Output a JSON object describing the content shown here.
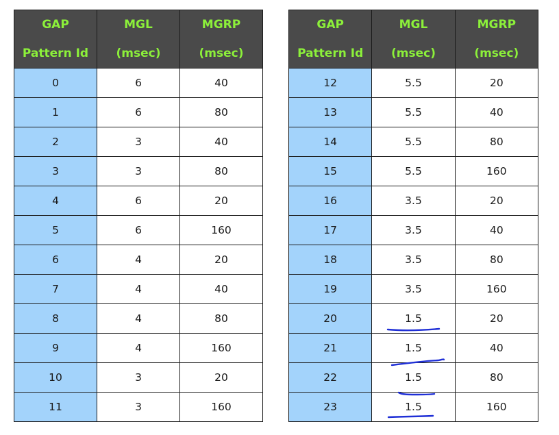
{
  "headers": [
    {
      "line1": "GAP",
      "line2": "Pattern Id"
    },
    {
      "line1": "MGL",
      "line2": "(msec)"
    },
    {
      "line1": "MGRP",
      "line2": "(msec)"
    }
  ],
  "tables": [
    {
      "rows": [
        {
          "id": "0",
          "mgl": "6",
          "mgrp": "40"
        },
        {
          "id": "1",
          "mgl": "6",
          "mgrp": "80"
        },
        {
          "id": "2",
          "mgl": "3",
          "mgrp": "40"
        },
        {
          "id": "3",
          "mgl": "3",
          "mgrp": "80"
        },
        {
          "id": "4",
          "mgl": "6",
          "mgrp": "20"
        },
        {
          "id": "5",
          "mgl": "6",
          "mgrp": "160"
        },
        {
          "id": "6",
          "mgl": "4",
          "mgrp": "20"
        },
        {
          "id": "7",
          "mgl": "4",
          "mgrp": "40"
        },
        {
          "id": "8",
          "mgl": "4",
          "mgrp": "80"
        },
        {
          "id": "9",
          "mgl": "4",
          "mgrp": "160"
        },
        {
          "id": "10",
          "mgl": "3",
          "mgrp": "20"
        },
        {
          "id": "11",
          "mgl": "3",
          "mgrp": "160"
        }
      ]
    },
    {
      "rows": [
        {
          "id": "12",
          "mgl": "5.5",
          "mgrp": "20"
        },
        {
          "id": "13",
          "mgl": "5.5",
          "mgrp": "40"
        },
        {
          "id": "14",
          "mgl": "5.5",
          "mgrp": "80"
        },
        {
          "id": "15",
          "mgl": "5.5",
          "mgrp": "160"
        },
        {
          "id": "16",
          "mgl": "3.5",
          "mgrp": "20"
        },
        {
          "id": "17",
          "mgl": "3.5",
          "mgrp": "40"
        },
        {
          "id": "18",
          "mgl": "3.5",
          "mgrp": "80"
        },
        {
          "id": "19",
          "mgl": "3.5",
          "mgrp": "160"
        },
        {
          "id": "20",
          "mgl": "1.5",
          "mgrp": "20"
        },
        {
          "id": "21",
          "mgl": "1.5",
          "mgrp": "40"
        },
        {
          "id": "22",
          "mgl": "1.5",
          "mgrp": "80"
        },
        {
          "id": "23",
          "mgl": "1.5",
          "mgrp": "160"
        }
      ]
    }
  ],
  "colors": {
    "header_background": "#4a4a4a",
    "header_text": "#8cf03a",
    "id_column_background": "#a3d3fb",
    "cell_background": "#ffffff",
    "grid_line": "#1a1a1a",
    "handwritten_ink": "#1f2fd6"
  }
}
